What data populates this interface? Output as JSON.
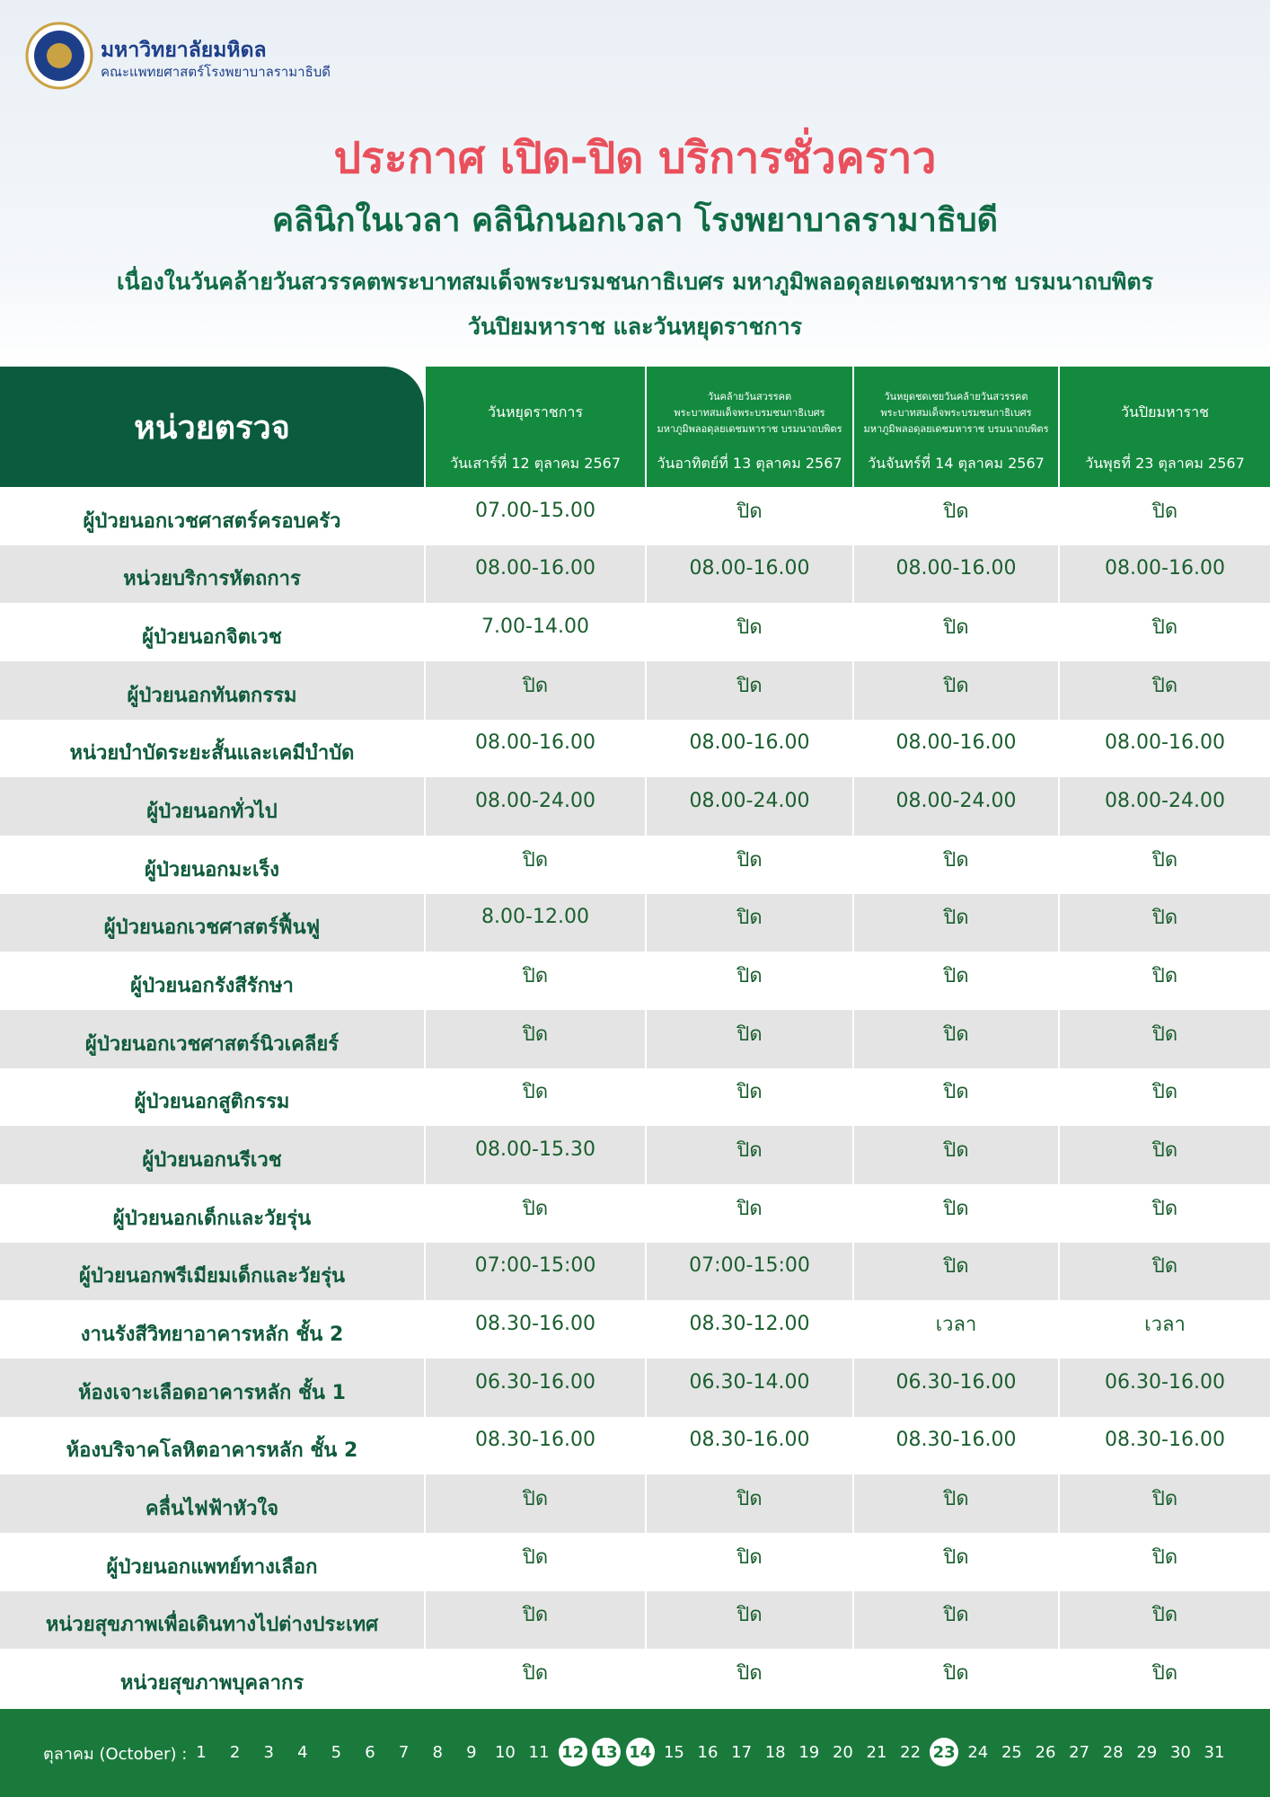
{
  "header": {
    "university": "มหาวิทยาลัยมหิดล",
    "faculty": "คณะแพทยศาสตร์โรงพยาบาลรามาธิบดี"
  },
  "title": "ประกาศ เปิด-ปิด บริการชั่วคราว",
  "subtitle": "คลินิกในเวลา คลินิกนอกเวลา โรงพยาบาลรามาธิบดี",
  "description": [
    "เนื่องในวันคล้ายวันสวรรคตพระบาทสมเด็จพระบรมชนกาธิเบศร มหาภูมิพลอดุลยเดชมหาราช บรมนาถบพิตร",
    "วันปิยมหาราช และวันหยุดราชการ"
  ],
  "table": {
    "corner": "หน่วยตรวจ",
    "columns": [
      {
        "label": [
          "วันหยุดราชการ"
        ],
        "date": "วันเสาร์ที่ 12 ตุลาคม 2567"
      },
      {
        "label": [
          "วันคล้ายวันสวรรคต",
          "พระบาทสมเด็จพระบรมชนกาธิเบศร",
          "มหาภูมิพลอดุลยเดชมหาราช บรมนาถบพิตร"
        ],
        "date": "วันอาทิตย์ที่ 13 ตุลาคม 2567"
      },
      {
        "label": [
          "วันหยุดชดเชยวันคล้ายวันสวรรคต",
          "พระบาทสมเด็จพระบรมชนกาธิเบศร",
          "มหาภูมิพลอดุลยเดชมหาราช บรมนาถบพิตร"
        ],
        "date": "วันจันทร์ที่ 14 ตุลาคม 2567"
      },
      {
        "label": [
          "วันปิยมหาราช"
        ],
        "date": "วันพุธที่ 23 ตุลาคม 2567"
      }
    ],
    "rows": [
      {
        "unit": "ผู้ป่วยนอกเวชศาสตร์ครอบครัว",
        "hours": [
          "07.00-15.00",
          "ปิด",
          "ปิด",
          "ปิด"
        ]
      },
      {
        "unit": "หน่วยบริการหัตถการ",
        "hours": [
          "08.00-16.00",
          "08.00-16.00",
          "08.00-16.00",
          "08.00-16.00"
        ]
      },
      {
        "unit": "ผู้ป่วยนอกจิตเวช",
        "hours": [
          "7.00-14.00",
          "ปิด",
          "ปิด",
          "ปิด"
        ]
      },
      {
        "unit": "ผู้ป่วยนอกทันตกรรม",
        "hours": [
          "ปิด",
          "ปิด",
          "ปิด",
          "ปิด"
        ]
      },
      {
        "unit": "หน่วยบำบัดระยะสั้นและเคมีบำบัด",
        "hours": [
          "08.00-16.00",
          "08.00-16.00",
          "08.00-16.00",
          "08.00-16.00"
        ]
      },
      {
        "unit": "ผู้ป่วยนอกทั่วไป",
        "hours": [
          "08.00-24.00",
          "08.00-24.00",
          "08.00-24.00",
          "08.00-24.00"
        ]
      },
      {
        "unit": "ผู้ป่วยนอกมะเร็ง",
        "hours": [
          "ปิด",
          "ปิด",
          "ปิด",
          "ปิด"
        ]
      },
      {
        "unit": "ผู้ป่วยนอกเวชศาสตร์ฟื้นฟู",
        "hours": [
          "8.00-12.00",
          "ปิด",
          "ปิด",
          "ปิด"
        ]
      },
      {
        "unit": "ผู้ป่วยนอกรังสีรักษา",
        "hours": [
          "ปิด",
          "ปิด",
          "ปิด",
          "ปิด"
        ]
      },
      {
        "unit": "ผู้ป่วยนอกเวชศาสตร์นิวเคลียร์",
        "hours": [
          "ปิด",
          "ปิด",
          "ปิด",
          "ปิด"
        ]
      },
      {
        "unit": "ผู้ป่วยนอกสูติกรรม",
        "hours": [
          "ปิด",
          "ปิด",
          "ปิด",
          "ปิด"
        ]
      },
      {
        "unit": "ผู้ป่วยนอกนรีเวช",
        "hours": [
          "08.00-15.30",
          "ปิด",
          "ปิด",
          "ปิด"
        ]
      },
      {
        "unit": "ผู้ป่วยนอกเด็กและวัยรุ่น",
        "hours": [
          "ปิด",
          "ปิด",
          "ปิด",
          "ปิด"
        ]
      },
      {
        "unit": "ผู้ป่วยนอกพรีเมียมเด็กและวัยรุ่น",
        "hours": [
          "07:00-15:00",
          "07:00-15:00",
          "ปิด",
          "ปิด"
        ]
      },
      {
        "unit": "งานรังสีวิทยาอาคารหลัก ชั้น 2",
        "hours": [
          "08.30-16.00",
          "08.30-12.00",
          "เวลา",
          "เวลา"
        ]
      },
      {
        "unit": "ห้องเจาะเลือดอาคารหลัก ชั้น 1",
        "hours": [
          "06.30-16.00",
          "06.30-14.00",
          "06.30-16.00",
          "06.30-16.00"
        ]
      },
      {
        "unit": "ห้องบริจาคโลหิตอาคารหลัก ชั้น 2",
        "hours": [
          "08.30-16.00",
          "08.30-16.00",
          "08.30-16.00",
          "08.30-16.00"
        ]
      },
      {
        "unit": "คลื่นไฟฟ้าหัวใจ",
        "hours": [
          "ปิด",
          "ปิด",
          "ปิด",
          "ปิด"
        ]
      },
      {
        "unit": "ผู้ป่วยนอกแพทย์ทางเลือก",
        "hours": [
          "ปิด",
          "ปิด",
          "ปิด",
          "ปิด"
        ]
      },
      {
        "unit": "หน่วยสุขภาพเพื่อเดินทางไปต่างประเทศ",
        "hours": [
          "ปิด",
          "ปิด",
          "ปิด",
          "ปิด"
        ]
      },
      {
        "unit": "หน่วยสุขภาพบุคลากร",
        "hours": [
          "ปิด",
          "ปิด",
          "ปิด",
          "ปิด"
        ]
      }
    ]
  },
  "footer": {
    "month_label": "ตุลาคม (October) :",
    "days": [
      1,
      2,
      3,
      4,
      5,
      6,
      7,
      8,
      9,
      10,
      11,
      12,
      13,
      14,
      15,
      16,
      17,
      18,
      19,
      20,
      21,
      22,
      23,
      24,
      25,
      26,
      27,
      28,
      29,
      30,
      31
    ],
    "highlighted": [
      12,
      13,
      14,
      23
    ]
  }
}
